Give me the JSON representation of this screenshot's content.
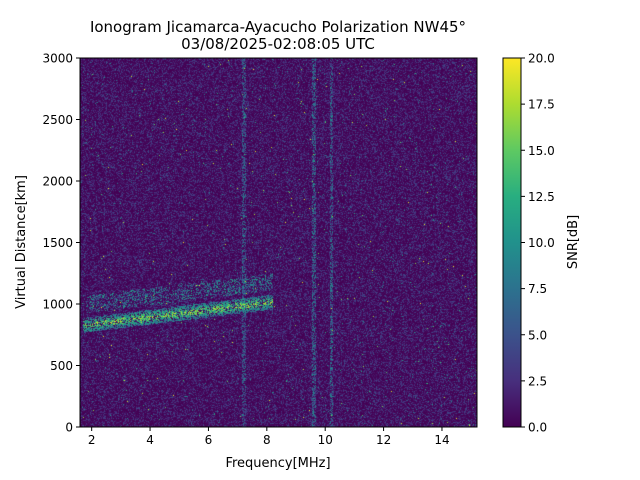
{
  "chart_data": {
    "type": "heatmap",
    "title_line1": "Ionogram Jicamarca-Ayacucho Polarization NW45°",
    "title_line2": "03/08/2025-02:08:05 UTC",
    "xlabel": "Frequency[MHz]",
    "ylabel": "Virtual Distance[km]",
    "xlim": [
      1.6,
      15.2
    ],
    "ylim": [
      0,
      3000
    ],
    "x_ticks": [
      2,
      4,
      6,
      8,
      10,
      12,
      14
    ],
    "x_tick_labels": [
      "2",
      "4",
      "6",
      "8",
      "10",
      "12",
      "14"
    ],
    "y_ticks": [
      0,
      500,
      1000,
      1500,
      2000,
      2500,
      3000
    ],
    "y_tick_labels": [
      "0",
      "500",
      "1000",
      "1500",
      "2000",
      "2500",
      "3000"
    ],
    "colorbar": {
      "label": "SNR[dB]",
      "range": [
        0,
        20
      ],
      "colormap": "viridis",
      "ticks": [
        0,
        2.5,
        5,
        7.5,
        10,
        12.5,
        15,
        17.5,
        20
      ],
      "tick_labels": [
        "0.0",
        "2.5",
        "5.0",
        "7.5",
        "10.0",
        "12.5",
        "15.0",
        "17.5",
        "20.0"
      ]
    },
    "features": [
      {
        "name": "F-layer echo trace",
        "freq_start": 1.7,
        "freq_end": 8.2,
        "distance_start": 830,
        "distance_end": 1030,
        "snr_peak": 20
      },
      {
        "name": "upper echo band",
        "freq_start": 1.8,
        "freq_end": 8.2,
        "distance_start": 1000,
        "distance_end": 1230,
        "snr_peak": 12
      },
      {
        "name": "interference stripe",
        "freq": 7.2,
        "snr_peak": 8
      },
      {
        "name": "interference stripe",
        "freq": 9.6,
        "snr_peak": 9
      },
      {
        "name": "interference stripe",
        "freq": 10.2,
        "snr_peak": 9
      }
    ]
  }
}
